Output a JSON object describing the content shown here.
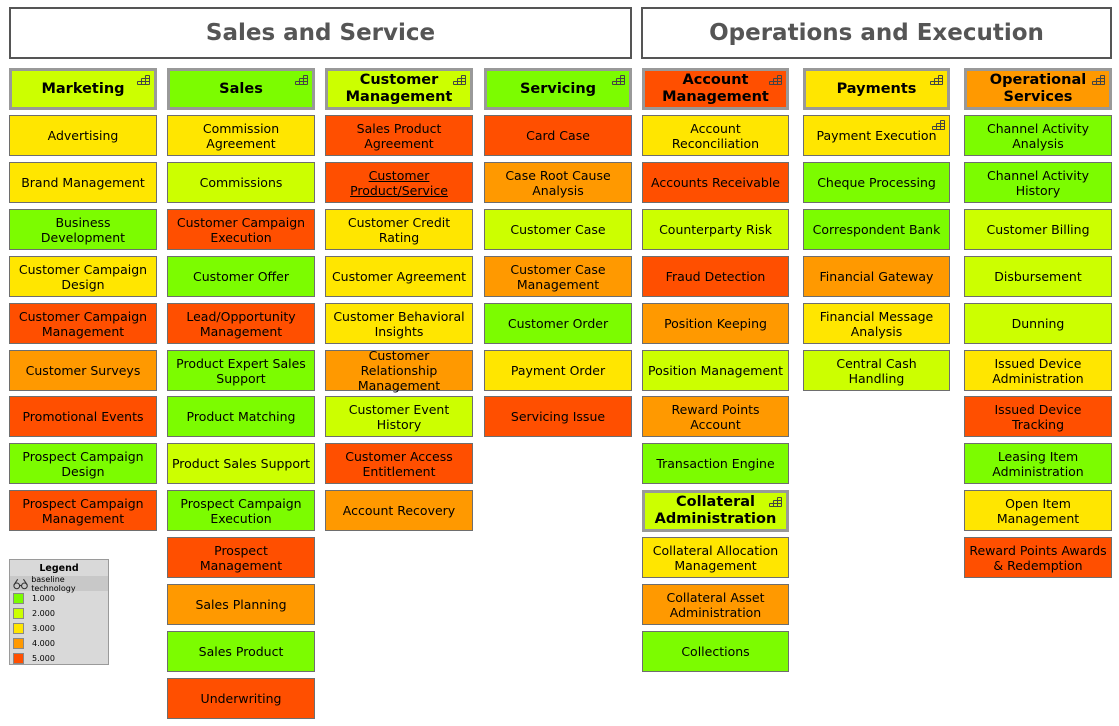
{
  "groups": [
    {
      "title": "Sales and Service"
    },
    {
      "title": "Operations and Execution"
    }
  ],
  "colors": {
    "1": "#7cfc00",
    "2": "#ccff00",
    "3": "#ffe600",
    "4": "#ff9900",
    "5": "#ff4f00"
  },
  "columns": [
    {
      "header": {
        "label": "Marketing",
        "level": 2
      },
      "items": [
        {
          "label": "Advertising",
          "level": 3
        },
        {
          "label": "Brand Management",
          "level": 3
        },
        {
          "label": "Business Development",
          "level": 1
        },
        {
          "label": "Customer Campaign Design",
          "level": 3
        },
        {
          "label": "Customer Campaign Management",
          "level": 5
        },
        {
          "label": "Customer Surveys",
          "level": 4
        },
        {
          "label": "Promotional Events",
          "level": 5
        },
        {
          "label": "Prospect Campaign Design",
          "level": 1
        },
        {
          "label": "Prospect Campaign Management",
          "level": 5
        }
      ]
    },
    {
      "header": {
        "label": "Sales",
        "level": 1
      },
      "items": [
        {
          "label": "Commission Agreement",
          "level": 3
        },
        {
          "label": "Commissions",
          "level": 2
        },
        {
          "label": "Customer Campaign Execution",
          "level": 5
        },
        {
          "label": "Customer Offer",
          "level": 1
        },
        {
          "label": "Lead/Opportunity Management",
          "level": 5
        },
        {
          "label": "Product Expert Sales Support",
          "level": 1
        },
        {
          "label": "Product Matching",
          "level": 1
        },
        {
          "label": "Product Sales Support",
          "level": 2
        },
        {
          "label": "Prospect Campaign Execution",
          "level": 1
        },
        {
          "label": "Prospect Management",
          "level": 5
        },
        {
          "label": "Sales Planning",
          "level": 4
        },
        {
          "label": "Sales Product",
          "level": 1
        },
        {
          "label": "Underwriting",
          "level": 5
        }
      ]
    },
    {
      "header": {
        "label": "Customer Management",
        "level": 2
      },
      "items": [
        {
          "label": "Sales Product Agreement",
          "level": 5
        },
        {
          "label": "Customer Product/Service",
          "level": 5,
          "underline": true
        },
        {
          "label": "Customer Credit Rating",
          "level": 3
        },
        {
          "label": "Customer Agreement",
          "level": 3
        },
        {
          "label": "Customer Behavioral Insights",
          "level": 3
        },
        {
          "label": "Customer Relationship Management",
          "level": 4
        },
        {
          "label": "Customer Event History",
          "level": 2
        },
        {
          "label": "Customer Access Entitlement",
          "level": 5
        },
        {
          "label": "Account Recovery",
          "level": 4
        }
      ]
    },
    {
      "header": {
        "label": "Servicing",
        "level": 1
      },
      "items": [
        {
          "label": "Card Case",
          "level": 5
        },
        {
          "label": "Case Root Cause Analysis",
          "level": 4
        },
        {
          "label": "Customer Case",
          "level": 2
        },
        {
          "label": "Customer Case Management",
          "level": 4
        },
        {
          "label": "Customer Order",
          "level": 1
        },
        {
          "label": "Payment Order",
          "level": 3
        },
        {
          "label": "Servicing Issue",
          "level": 5
        }
      ]
    },
    {
      "header": {
        "label": "Account Management",
        "level": 5
      },
      "items": [
        {
          "label": "Account Reconciliation",
          "level": 3
        },
        {
          "label": "Accounts Receivable",
          "level": 5
        },
        {
          "label": "Counterparty Risk",
          "level": 2
        },
        {
          "label": "Fraud Detection",
          "level": 5
        },
        {
          "label": "Position Keeping",
          "level": 4
        },
        {
          "label": "Position Management",
          "level": 2
        },
        {
          "label": "Reward Points Account",
          "level": 4
        },
        {
          "label": "Transaction Engine",
          "level": 1
        },
        {
          "label": "Collateral Administration",
          "level": 2,
          "header": true
        },
        {
          "label": "Collateral Allocation Management",
          "level": 3
        },
        {
          "label": "Collateral Asset Administration",
          "level": 4
        },
        {
          "label": "Collections",
          "level": 1
        }
      ]
    },
    {
      "header": {
        "label": "Payments",
        "level": 3
      },
      "items": [
        {
          "label": "Payment Execution",
          "level": 3,
          "icon": true
        },
        {
          "label": "Cheque Processing",
          "level": 1
        },
        {
          "label": "Correspondent Bank",
          "level": 1
        },
        {
          "label": "Financial Gateway",
          "level": 4
        },
        {
          "label": "Financial Message Analysis",
          "level": 3
        },
        {
          "label": "Central Cash Handling",
          "level": 2
        }
      ]
    },
    {
      "header": {
        "label": "Operational Services",
        "level": 4
      },
      "items": [
        {
          "label": "Channel Activity Analysis",
          "level": 1
        },
        {
          "label": "Channel Activity History",
          "level": 1
        },
        {
          "label": "Customer Billing",
          "level": 2
        },
        {
          "label": "Disbursement",
          "level": 2
        },
        {
          "label": "Dunning",
          "level": 2
        },
        {
          "label": "Issued Device Administration",
          "level": 3
        },
        {
          "label": "Issued Device Tracking",
          "level": 5
        },
        {
          "label": "Leasing Item Administration",
          "level": 1
        },
        {
          "label": "Open Item Management",
          "level": 3
        },
        {
          "label": "Reward Points Awards & Redemption",
          "level": 5
        }
      ]
    }
  ],
  "legend": {
    "title": "Legend",
    "subtitle": "baseline technology",
    "items": [
      {
        "label": "1.000",
        "level": 1
      },
      {
        "label": "2.000",
        "level": 2
      },
      {
        "label": "3.000",
        "level": 3
      },
      {
        "label": "4.000",
        "level": 4
      },
      {
        "label": "5.000",
        "level": 5
      }
    ]
  }
}
